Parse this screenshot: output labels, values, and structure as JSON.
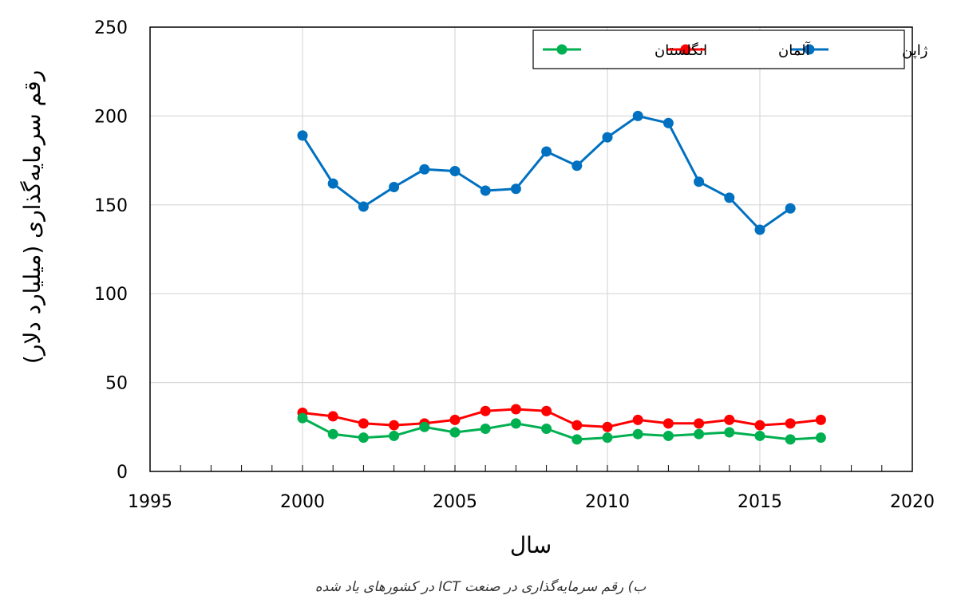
{
  "caption": "ب) رقم سرمایه‌گذاری در صنعت ICT در کشورهای یاد شده",
  "chart_data": {
    "type": "line",
    "xlabel": "سال",
    "ylabel": "رقم سرمایه‌گذاری (میلیارد دلار)",
    "xlim": [
      1995,
      2020
    ],
    "ylim": [
      0,
      250
    ],
    "x_ticks": [
      1995,
      2000,
      2005,
      2010,
      2015,
      2020
    ],
    "y_ticks": [
      0,
      50,
      100,
      150,
      200,
      250
    ],
    "grid": true,
    "legend_position": "top-right",
    "series": [
      {
        "name": "ژاپن",
        "color": "#0070C0",
        "x": [
          2000,
          2001,
          2002,
          2003,
          2004,
          2005,
          2006,
          2007,
          2008,
          2009,
          2010,
          2011,
          2012,
          2013,
          2014,
          2015,
          2016
        ],
        "values": [
          189,
          162,
          149,
          160,
          170,
          169,
          158,
          159,
          180,
          172,
          188,
          200,
          196,
          163,
          154,
          136,
          148
        ]
      },
      {
        "name": "آلمان",
        "color": "#FF0000",
        "x": [
          2000,
          2001,
          2002,
          2003,
          2004,
          2005,
          2006,
          2007,
          2008,
          2009,
          2010,
          2011,
          2012,
          2013,
          2014,
          2015,
          2016,
          2017
        ],
        "values": [
          33,
          31,
          27,
          26,
          27,
          29,
          34,
          35,
          34,
          26,
          25,
          29,
          27,
          27,
          29,
          26,
          27,
          29
        ]
      },
      {
        "name": "انگلستان",
        "color": "#00B050",
        "x": [
          2000,
          2001,
          2002,
          2003,
          2004,
          2005,
          2006,
          2007,
          2008,
          2009,
          2010,
          2011,
          2012,
          2013,
          2014,
          2015,
          2016,
          2017
        ],
        "values": [
          30,
          21,
          19,
          20,
          25,
          22,
          24,
          27,
          24,
          18,
          19,
          21,
          20,
          21,
          22,
          20,
          18,
          19
        ]
      }
    ]
  }
}
